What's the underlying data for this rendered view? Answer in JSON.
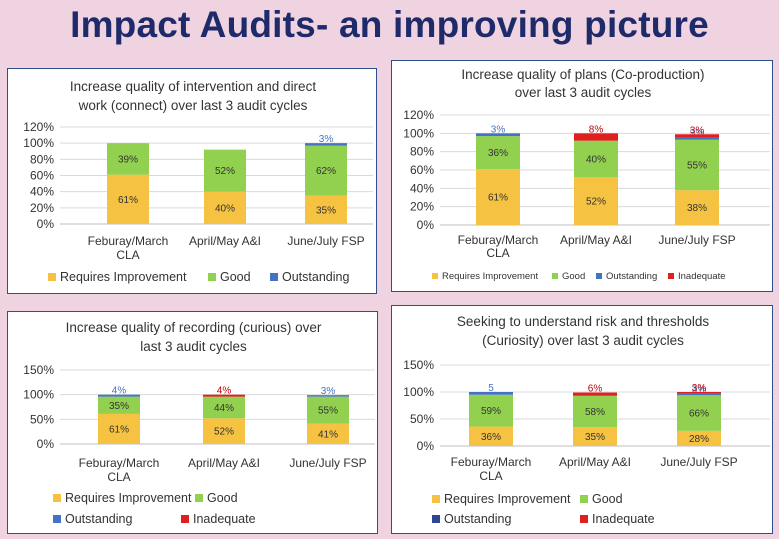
{
  "page": {
    "title": "Impact Audits- an improving picture"
  },
  "colors": {
    "requires_improvement": "#f5c242",
    "good": "#92d050",
    "outstanding": "#4472c4",
    "outstanding_dark": "#2f4694",
    "inadequate": "#e02020"
  },
  "chart_data": [
    {
      "type": "bar",
      "stacked": true,
      "title": [
        "Increase quality of intervention and direct",
        "work (connect) over last 3 audit cycles"
      ],
      "categories": [
        [
          "Feburay/March",
          "CLA"
        ],
        [
          "April/May A&I"
        ],
        [
          "June/July FSP"
        ]
      ],
      "ylim": [
        0,
        120
      ],
      "yticks": [
        "0%",
        "20%",
        "40%",
        "60%",
        "80%",
        "100%",
        "120%"
      ],
      "series": [
        {
          "name": "Requires Improvement",
          "values": [
            61,
            40,
            35
          ],
          "labels": [
            "61%",
            "40%",
            "35%"
          ]
        },
        {
          "name": "Good",
          "values": [
            39,
            52,
            62
          ],
          "labels": [
            "39%",
            "52%",
            "62%"
          ]
        },
        {
          "name": "Outstanding",
          "values": [
            0,
            0,
            3
          ],
          "labels": [
            "",
            "",
            "3%"
          ]
        }
      ]
    },
    {
      "type": "bar",
      "stacked": true,
      "title": [
        "Increase quality of plans (Co-production)",
        "over last 3 audit cycles"
      ],
      "categories": [
        [
          "Feburay/March",
          "CLA"
        ],
        [
          "April/May A&I"
        ],
        [
          "June/July FSP"
        ]
      ],
      "ylim": [
        0,
        120
      ],
      "yticks": [
        "0%",
        "20%",
        "40%",
        "60%",
        "80%",
        "100%",
        "120%"
      ],
      "series": [
        {
          "name": "Requires Improvement",
          "values": [
            61,
            52,
            38
          ],
          "labels": [
            "61%",
            "52%",
            "38%"
          ]
        },
        {
          "name": "Good",
          "values": [
            36,
            40,
            55
          ],
          "labels": [
            "36%",
            "40%",
            "55%"
          ]
        },
        {
          "name": "Outstanding",
          "values": [
            3,
            0,
            3
          ],
          "labels": [
            "3%",
            "",
            "3%"
          ]
        },
        {
          "name": "Inadequate",
          "values": [
            0,
            8,
            3
          ],
          "labels": [
            "",
            "8%",
            "3%"
          ]
        }
      ]
    },
    {
      "type": "bar",
      "stacked": true,
      "title": [
        "Increase quality of recording (curious) over",
        "last 3 audit cycles"
      ],
      "categories": [
        [
          "Feburay/March",
          "CLA"
        ],
        [
          "April/May A&I"
        ],
        [
          "June/July FSP"
        ]
      ],
      "ylim": [
        0,
        150
      ],
      "yticks": [
        "0%",
        "50%",
        "100%",
        "150%"
      ],
      "series": [
        {
          "name": "Requires Improvement",
          "values": [
            61,
            52,
            41
          ],
          "labels": [
            "61%",
            "52%",
            "41%"
          ]
        },
        {
          "name": "Good",
          "values": [
            35,
            44,
            55
          ],
          "labels": [
            "35%",
            "44%",
            "55%"
          ]
        },
        {
          "name": "Outstanding",
          "values": [
            4,
            0,
            3
          ],
          "labels": [
            "4%",
            "",
            "3%"
          ]
        },
        {
          "name": "Inadequate",
          "values": [
            0,
            4,
            0
          ],
          "labels": [
            "",
            "4%",
            ""
          ]
        }
      ]
    },
    {
      "type": "bar",
      "stacked": true,
      "title": [
        "Seeking to understand risk and thresholds",
        "(Curiosity) over last 3 audit cycles"
      ],
      "categories": [
        [
          "Feburay/March",
          "CLA"
        ],
        [
          "April/May A&I"
        ],
        [
          "June/July FSP"
        ]
      ],
      "ylim": [
        0,
        150
      ],
      "yticks": [
        "0%",
        "50%",
        "100%",
        "150%"
      ],
      "series": [
        {
          "name": "Requires Improvement",
          "values": [
            36,
            35,
            28
          ],
          "labels": [
            "36%",
            "35%",
            "28%"
          ]
        },
        {
          "name": "Good",
          "values": [
            59,
            58,
            66
          ],
          "labels": [
            "59%",
            "58%",
            "66%"
          ]
        },
        {
          "name": "Outstanding",
          "values": [
            5,
            0,
            3
          ],
          "labels": [
            "5",
            "",
            "3%"
          ]
        },
        {
          "name": "Inadequate",
          "values": [
            0,
            6,
            3
          ],
          "labels": [
            "",
            "6%",
            "3%"
          ]
        }
      ]
    }
  ]
}
